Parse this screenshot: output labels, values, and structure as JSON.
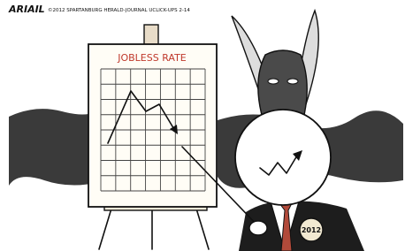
{
  "signature": "ARIAIL",
  "credit": "©2012 SPARTANBURG HERALD-JOURNAL UCLICK-UPS 2-14",
  "chart": {
    "title": "JOBLESS RATE"
  },
  "button": {
    "label": "2012"
  }
}
